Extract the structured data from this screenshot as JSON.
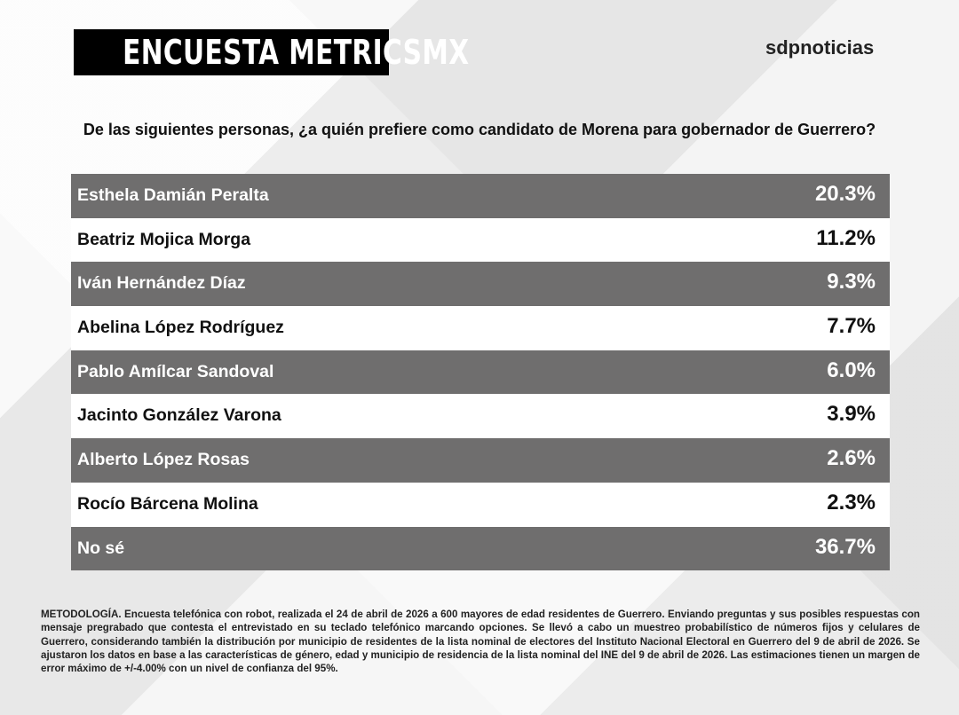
{
  "header": {
    "title": "ENCUESTA METRICSMX",
    "brand": "sdpnoticias"
  },
  "question": "De las siguientes personas, ¿a quién prefiere como candidato de Morena para gobernador de Guerrero?",
  "table": {
    "rows": [
      [
        "Esthela Damián Peralta",
        "20.3%"
      ],
      [
        "Beatriz Mojica Morga",
        "11.2%"
      ],
      [
        "Iván Hernández Díaz",
        "9.3%"
      ],
      [
        "Abelina López Rodríguez",
        "7.7%"
      ],
      [
        "Pablo Amílcar Sandoval",
        "6.0%"
      ],
      [
        "Jacinto González Varona",
        "3.9%"
      ],
      [
        "Alberto López Rosas",
        "2.6%"
      ],
      [
        "Rocío Bárcena Molina",
        "2.3%"
      ],
      [
        "No sé",
        "36.7%"
      ]
    ]
  },
  "methodology": "METODOLOGÍA. Encuesta telefónica con robot, realizada el 24 de abril de 2026 a 600 mayores de edad residentes de Guerrero. Enviando preguntas y sus posibles respuestas con mensaje pregrabado que contesta el entrevistado en su teclado telefónico marcando opciones. Se llevó a cabo un muestreo probabilístico de números fijos y celulares de Guerrero, considerando también la distribución por municipio de residentes de la lista nominal de electores del Instituto Nacional Electoral en Guerrero del 9 de abril de 2026. Se ajustaron los datos en base a las características de género, edad y municipio de residencia de la lista nominal del INE del 9 de abril de 2026. Las estimaciones tienen un margen de error máximo de +/-4.00% con un nivel de confianza del 95%."
}
